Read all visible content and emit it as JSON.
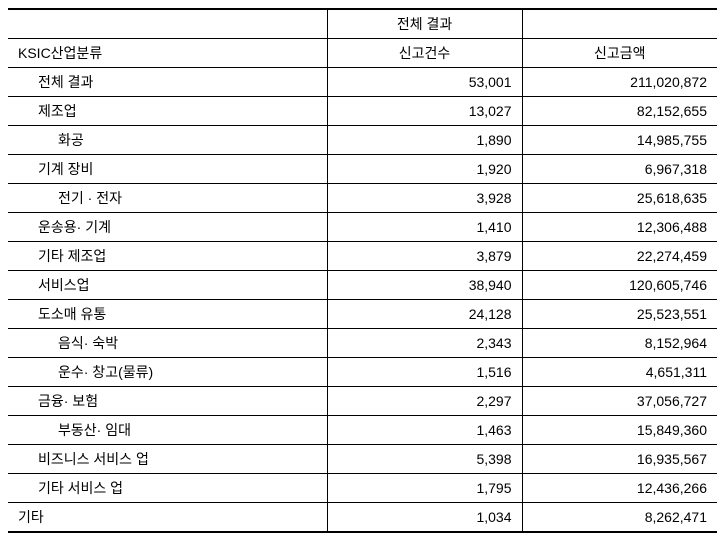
{
  "type": "table",
  "background_color": "#ffffff",
  "border_color": "#000000",
  "font_family": "Malgun Gothic",
  "font_size": 14,
  "header": {
    "row1": {
      "blank": "",
      "span": "전체 결과"
    },
    "row2": {
      "label": "KSIC산업분류",
      "count": "신고건수",
      "amount": "신고금액"
    }
  },
  "columns": [
    "label",
    "count",
    "amount"
  ],
  "col_align": [
    "left",
    "right",
    "right"
  ],
  "col_widths": [
    "45%",
    "27.5%",
    "27.5%"
  ],
  "rows": [
    {
      "indent": 1,
      "label": "전체 결과",
      "count": "53,001",
      "amount": "211,020,872"
    },
    {
      "indent": 1,
      "label": "제조업",
      "count": "13,027",
      "amount": "82,152,655"
    },
    {
      "indent": 2,
      "label": "화공",
      "count": "1,890",
      "amount": "14,985,755"
    },
    {
      "indent": 1,
      "label": "기계 장비",
      "count": "1,920",
      "amount": "6,967,318"
    },
    {
      "indent": 2,
      "label": "전기 · 전자",
      "count": "3,928",
      "amount": "25,618,635"
    },
    {
      "indent": 1,
      "label": "운송용· 기계",
      "count": "1,410",
      "amount": "12,306,488"
    },
    {
      "indent": 1,
      "label": "기타 제조업",
      "count": "3,879",
      "amount": "22,274,459"
    },
    {
      "indent": 1,
      "label": "서비스업",
      "count": "38,940",
      "amount": "120,605,746"
    },
    {
      "indent": 1,
      "label": "도소매 유통",
      "count": "24,128",
      "amount": "25,523,551"
    },
    {
      "indent": 2,
      "label": "음식· 숙박",
      "count": "2,343",
      "amount": "8,152,964"
    },
    {
      "indent": 2,
      "label": "운수· 창고(물류)",
      "count": "1,516",
      "amount": "4,651,311"
    },
    {
      "indent": 1,
      "label": "금융· 보험",
      "count": "2,297",
      "amount": "37,056,727"
    },
    {
      "indent": 2,
      "label": "부동산· 임대",
      "count": "1,463",
      "amount": "15,849,360"
    },
    {
      "indent": 1,
      "label": "비즈니스 서비스 업",
      "count": "5,398",
      "amount": "16,935,567"
    },
    {
      "indent": 1,
      "label": "기타 서비스 업",
      "count": "1,795",
      "amount": "12,436,266"
    },
    {
      "indent": 0,
      "label": "기타",
      "count": "1,034",
      "amount": "8,262,471"
    }
  ]
}
